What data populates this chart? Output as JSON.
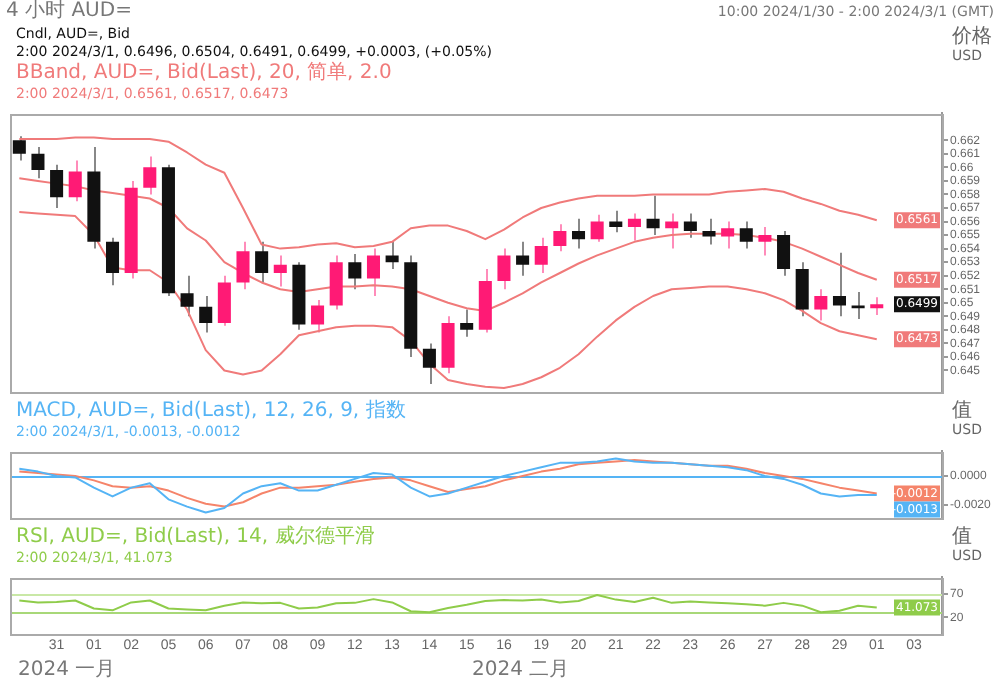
{
  "chart_data": [
    {
      "type": "candlestick",
      "title": "4 小时 AUD=",
      "subtitle": "10:00 2024/1/30 - 2:00 2024/3/1 (GMT)",
      "ylabel": "价格 USD",
      "categories": [
        null,
        null,
        "31",
        null,
        "01",
        null,
        "02",
        null,
        "05",
        null,
        "06",
        null,
        "07",
        null,
        "08",
        null,
        "09",
        null,
        "12",
        null,
        "13",
        null,
        "14",
        null,
        "15",
        null,
        "16",
        null,
        "19",
        null,
        "20",
        null,
        "21",
        null,
        "22",
        null,
        "23",
        null,
        "26",
        null,
        "27",
        null,
        "28",
        null,
        "29",
        null,
        "01",
        null,
        "03",
        null
      ],
      "ohlc": [
        [
          0.662,
          0.6623,
          0.6605,
          0.661
        ],
        [
          0.661,
          0.6615,
          0.6592,
          0.6598
        ],
        [
          0.6598,
          0.6602,
          0.657,
          0.6578
        ],
        [
          0.6578,
          0.6605,
          0.6575,
          0.6597
        ],
        [
          0.6597,
          0.6615,
          0.654,
          0.6545
        ],
        [
          0.6545,
          0.6548,
          0.6513,
          0.6522
        ],
        [
          0.6522,
          0.659,
          0.6518,
          0.6585
        ],
        [
          0.6585,
          0.6608,
          0.658,
          0.66
        ],
        [
          0.66,
          0.6602,
          0.6505,
          0.6507
        ],
        [
          0.6507,
          0.652,
          0.649,
          0.6497
        ],
        [
          0.6497,
          0.6505,
          0.6478,
          0.6485
        ],
        [
          0.6485,
          0.652,
          0.6483,
          0.6515
        ],
        [
          0.6515,
          0.6545,
          0.651,
          0.6538
        ],
        [
          0.6538,
          0.6545,
          0.6515,
          0.6522
        ],
        [
          0.6522,
          0.6535,
          0.6512,
          0.6528
        ],
        [
          0.6528,
          0.653,
          0.648,
          0.6484
        ],
        [
          0.6484,
          0.6502,
          0.6478,
          0.6498
        ],
        [
          0.6498,
          0.6535,
          0.6495,
          0.653
        ],
        [
          0.653,
          0.6536,
          0.651,
          0.6518
        ],
        [
          0.6518,
          0.654,
          0.6505,
          0.6535
        ],
        [
          0.6535,
          0.6545,
          0.6525,
          0.653
        ],
        [
          0.653,
          0.6535,
          0.646,
          0.6466
        ],
        [
          0.6466,
          0.647,
          0.644,
          0.6452
        ],
        [
          0.6452,
          0.649,
          0.6448,
          0.6485
        ],
        [
          0.6485,
          0.6495,
          0.6475,
          0.648
        ],
        [
          0.648,
          0.6525,
          0.6478,
          0.6516
        ],
        [
          0.6516,
          0.654,
          0.651,
          0.6535
        ],
        [
          0.6535,
          0.6545,
          0.652,
          0.6528
        ],
        [
          0.6528,
          0.6548,
          0.6522,
          0.6542
        ],
        [
          0.6542,
          0.6558,
          0.6538,
          0.6553
        ],
        [
          0.6553,
          0.6562,
          0.654,
          0.6547
        ],
        [
          0.6547,
          0.6565,
          0.6545,
          0.656
        ],
        [
          0.656,
          0.6568,
          0.6552,
          0.6556
        ],
        [
          0.6556,
          0.6566,
          0.6546,
          0.6562
        ],
        [
          0.6562,
          0.6579,
          0.655,
          0.6555
        ],
        [
          0.6555,
          0.6566,
          0.654,
          0.656
        ],
        [
          0.656,
          0.6566,
          0.6548,
          0.6553
        ],
        [
          0.6553,
          0.6562,
          0.6543,
          0.6549
        ],
        [
          0.6549,
          0.656,
          0.654,
          0.6555
        ],
        [
          0.6555,
          0.656,
          0.654,
          0.6545
        ],
        [
          0.6545,
          0.6556,
          0.6535,
          0.655
        ],
        [
          0.655,
          0.6553,
          0.652,
          0.6525
        ],
        [
          0.6525,
          0.653,
          0.649,
          0.6495
        ],
        [
          0.6495,
          0.651,
          0.6487,
          0.6505
        ],
        [
          0.6505,
          0.6537,
          0.649,
          0.6498
        ],
        [
          0.6498,
          0.6508,
          0.6488,
          0.6496
        ],
        [
          0.6496,
          0.6504,
          0.6491,
          0.6499
        ],
        null,
        null,
        null
      ],
      "colors": [
        "#111111",
        "#111111",
        "#111111",
        "#ff1a75",
        "#111111",
        "#111111",
        "#ff1a75",
        "#ff1a75",
        "#111111",
        "#111111",
        "#111111",
        "#ff1a75",
        "#ff1a75",
        "#111111",
        "#ff1a75",
        "#111111",
        "#ff1a75",
        "#ff1a75",
        "#111111",
        "#ff1a75",
        "#111111",
        "#111111",
        "#111111",
        "#ff1a75",
        "#111111",
        "#ff1a75",
        "#ff1a75",
        "#111111",
        "#ff1a75",
        "#ff1a75",
        "#111111",
        "#ff1a75",
        "#111111",
        "#ff1a75",
        "#111111",
        "#ff1a75",
        "#111111",
        "#111111",
        "#ff1a75",
        "#111111",
        "#ff1a75",
        "#111111",
        "#111111",
        "#ff1a75",
        "#111111",
        "#111111",
        "#ff1a75",
        null,
        null,
        null
      ],
      "series": [
        {
          "type": "line",
          "color": "#f07a7a",
          "values": [
            0.6621,
            0.6621,
            0.6621,
            0.6622,
            0.6622,
            0.6621,
            0.6621,
            0.6621,
            0.6619,
            0.6611,
            0.6602,
            0.6596,
            0.657,
            0.6543,
            0.654,
            0.6541,
            0.6543,
            0.6544,
            0.6541,
            0.6542,
            0.6545,
            0.6555,
            0.6557,
            0.6557,
            0.6553,
            0.6547,
            0.6554,
            0.6563,
            0.657,
            0.6574,
            0.6577,
            0.6579,
            0.6579,
            0.6579,
            0.658,
            0.658,
            0.658,
            0.658,
            0.6582,
            0.6583,
            0.6584,
            0.6582,
            0.6577,
            0.6573,
            0.6568,
            0.6565,
            0.6561,
            null,
            null,
            null
          ],
          "value_labels": [
            null,
            null,
            null,
            null,
            null,
            null,
            null,
            null,
            null,
            null,
            null,
            null,
            null,
            null,
            null,
            null,
            null,
            null,
            null,
            null,
            null,
            null,
            null,
            null,
            null,
            null,
            null,
            null,
            null,
            null,
            null,
            null,
            null,
            null,
            null,
            null,
            null,
            null,
            null,
            null,
            null,
            null,
            null,
            null,
            null,
            null,
            "0.6561",
            null,
            null,
            null
          ]
        },
        {
          "type": "line",
          "color": "#f07a7a",
          "values": [
            0.6592,
            0.659,
            0.6588,
            0.6586,
            0.6583,
            0.6581,
            0.6579,
            0.6577,
            0.657,
            0.6555,
            0.6546,
            0.653,
            0.6522,
            0.6515,
            0.651,
            0.6508,
            0.651,
            0.6512,
            0.6512,
            0.6513,
            0.6512,
            0.651,
            0.6505,
            0.65,
            0.6496,
            0.6494,
            0.65,
            0.6507,
            0.6515,
            0.6522,
            0.6529,
            0.6535,
            0.654,
            0.6545,
            0.6548,
            0.655,
            0.6551,
            0.6551,
            0.6551,
            0.655,
            0.6548,
            0.6545,
            0.654,
            0.6534,
            0.6528,
            0.6522,
            0.6517,
            null,
            null,
            null
          ],
          "value_labels": [
            null,
            null,
            null,
            null,
            null,
            null,
            null,
            null,
            null,
            null,
            null,
            null,
            null,
            null,
            null,
            null,
            null,
            null,
            null,
            null,
            null,
            null,
            null,
            null,
            null,
            null,
            null,
            null,
            null,
            null,
            null,
            null,
            null,
            null,
            null,
            null,
            null,
            null,
            null,
            null,
            null,
            null,
            null,
            null,
            null,
            null,
            "0.6517",
            null,
            null,
            null
          ]
        },
        {
          "type": "line",
          "color": "#f07a7a",
          "values": [
            0.6567,
            0.6566,
            0.6565,
            0.6564,
            0.655,
            0.6526,
            0.6524,
            0.6524,
            0.6515,
            0.6495,
            0.6465,
            0.645,
            0.6447,
            0.645,
            0.6462,
            0.6476,
            0.6479,
            0.6482,
            0.6483,
            0.6483,
            0.6482,
            0.6472,
            0.6455,
            0.6443,
            0.644,
            0.6438,
            0.6437,
            0.644,
            0.6445,
            0.6452,
            0.6462,
            0.6475,
            0.6487,
            0.6497,
            0.6505,
            0.651,
            0.6511,
            0.6512,
            0.6512,
            0.651,
            0.6507,
            0.6502,
            0.6494,
            0.6485,
            0.6479,
            0.6476,
            0.6473,
            null,
            null,
            null
          ],
          "value_labels": [
            null,
            null,
            null,
            null,
            null,
            null,
            null,
            null,
            null,
            null,
            null,
            null,
            null,
            null,
            null,
            null,
            null,
            null,
            null,
            null,
            null,
            null,
            null,
            null,
            null,
            null,
            null,
            null,
            null,
            null,
            null,
            null,
            null,
            null,
            null,
            null,
            null,
            null,
            null,
            null,
            null,
            null,
            null,
            null,
            null,
            null,
            "0.6473",
            null,
            null,
            null
          ]
        }
      ],
      "ylim": [
        0.6435,
        0.664
      ],
      "yticks": [
        0.645,
        0.646,
        0.647,
        0.648,
        0.649,
        0.65,
        0.651,
        0.652,
        0.653,
        0.654,
        0.655,
        0.656,
        0.657,
        0.658,
        0.659,
        0.66,
        0.661,
        0.662
      ],
      "tick_labels": "y",
      "annotations": [
        "Cndl, AUD=, Bid",
        "2:00 2024/3/1, 0.6496, 0.6504, 0.6491, 0.6499, +0.0003, (+0.05%)",
        "BBand, AUD=, Bid(Last), 20, 简单, 2.0",
        "2:00 2024/3/1, 0.6561, 0.6517, 0.6473"
      ],
      "value_labels": [
        null,
        null,
        null,
        null,
        null,
        null,
        null,
        null,
        null,
        null,
        null,
        null,
        null,
        null,
        null,
        null,
        null,
        null,
        null,
        null,
        null,
        null,
        null,
        null,
        null,
        null,
        null,
        null,
        null,
        null,
        null,
        null,
        null,
        null,
        null,
        null,
        null,
        null,
        null,
        null,
        null,
        null,
        null,
        null,
        null,
        null,
        "0.6499",
        null,
        null,
        null
      ]
    },
    {
      "type": "line",
      "ylabel": "值 USD",
      "categories": [
        null,
        null,
        "31",
        null,
        "01",
        null,
        "02",
        null,
        "05",
        null,
        "06",
        null,
        "07",
        null,
        "08",
        null,
        "09",
        null,
        "12",
        null,
        "13",
        null,
        "14",
        null,
        "15",
        null,
        "16",
        null,
        "19",
        null,
        "20",
        null,
        "21",
        null,
        "22",
        null,
        "23",
        null,
        "26",
        null,
        "27",
        null,
        "28",
        null,
        "29",
        null,
        "01",
        null,
        "03",
        null
      ],
      "series": [
        {
          "color": "#55b4f5",
          "values": [
            0.0005,
            0.0003,
            0,
            -0.0001,
            -0.0008,
            -0.0014,
            -0.0008,
            -0.0005,
            -0.0016,
            -0.0021,
            -0.0025,
            -0.0022,
            -0.0012,
            -0.0007,
            -0.0005,
            -0.001,
            -0.001,
            -0.0006,
            -0.0002,
            0.0002,
            0.0001,
            -0.0008,
            -0.0014,
            -0.0012,
            -0.0008,
            -0.0004,
            0,
            0.0003,
            0.0006,
            0.0009,
            0.0009,
            0.001,
            0.0012,
            0.001,
            0.0009,
            0.0009,
            0.0008,
            0.0007,
            0.0006,
            0.0004,
            0,
            -0.0002,
            -0.0006,
            -0.0012,
            -0.0014,
            -0.0013,
            -0.0013,
            null,
            null,
            null
          ],
          "value_labels": [
            null,
            null,
            null,
            null,
            null,
            null,
            null,
            null,
            null,
            null,
            null,
            null,
            null,
            null,
            null,
            null,
            null,
            null,
            null,
            null,
            null,
            null,
            null,
            null,
            null,
            null,
            null,
            null,
            null,
            null,
            null,
            null,
            null,
            null,
            null,
            null,
            null,
            null,
            null,
            null,
            null,
            null,
            null,
            null,
            null,
            null,
            "-0.0013",
            null,
            null,
            null
          ]
        },
        {
          "color": "#f5846a",
          "values": [
            0.0003,
            0.0002,
            0.0001,
            0,
            -0.0003,
            -0.0007,
            -0.0008,
            -0.0007,
            -0.001,
            -0.0015,
            -0.0019,
            -0.0021,
            -0.0018,
            -0.0012,
            -0.0008,
            -0.0008,
            -0.0007,
            -0.0006,
            -0.0004,
            -0.0002,
            -0.0001,
            -0.0003,
            -0.0007,
            -0.0011,
            -0.0009,
            -0.0007,
            -0.0003,
            0,
            0.0003,
            0.0005,
            0.0008,
            0.0009,
            0.001,
            0.0011,
            0.001,
            0.0009,
            0.0008,
            0.0007,
            0.0007,
            0.0005,
            0.0002,
            0,
            -0.0002,
            -0.0005,
            -0.0008,
            -0.001,
            -0.0012,
            null,
            null,
            null
          ],
          "value_labels": [
            null,
            null,
            null,
            null,
            null,
            null,
            null,
            null,
            null,
            null,
            null,
            null,
            null,
            null,
            null,
            null,
            null,
            null,
            null,
            null,
            null,
            null,
            null,
            null,
            null,
            null,
            null,
            null,
            null,
            null,
            null,
            null,
            null,
            null,
            null,
            null,
            null,
            null,
            null,
            null,
            null,
            null,
            null,
            null,
            null,
            null,
            "-0.0012",
            null,
            null,
            null
          ]
        }
      ],
      "ylim": [
        -0.0028,
        0.0017
      ],
      "yticks": [
        {
          "value": 0,
          "label": "0.0000"
        },
        {
          "value": -0.002,
          "label": "-0.0020"
        }
      ],
      "ref_lines": [
        {
          "axis": "y",
          "value": 0,
          "color": "#55b4f5"
        }
      ],
      "tick_labels": "y",
      "annotations": [
        "MACD, AUD=, Bid(Last), 12, 26, 9, 指数",
        "2:00 2024/3/1, -0.0013, -0.0012"
      ]
    },
    {
      "type": "line",
      "ylabel": "值 USD",
      "categories": [
        null,
        null,
        "31",
        null,
        "01",
        null,
        "02",
        null,
        "05",
        null,
        "06",
        null,
        "07",
        null,
        "08",
        null,
        "09",
        null,
        "12",
        null,
        "13",
        null,
        "14",
        null,
        "15",
        null,
        "16",
        null,
        "19",
        null,
        "20",
        null,
        "21",
        null,
        "22",
        null,
        "23",
        null,
        "26",
        null,
        "27",
        null,
        "28",
        null,
        "29",
        null,
        "01",
        null,
        "03",
        null
      ],
      "series": [
        {
          "color": "#8fcc4a",
          "values": [
            56,
            52,
            53,
            56,
            39,
            35,
            52,
            56,
            39,
            37,
            35,
            45,
            52,
            50,
            51,
            39,
            41,
            50,
            51,
            59,
            52,
            33,
            31,
            40,
            47,
            55,
            57,
            56,
            58,
            52,
            55,
            68,
            58,
            53,
            62,
            51,
            54,
            52,
            50,
            48,
            45,
            51,
            45,
            31,
            34,
            45,
            41.073,
            null,
            null,
            null
          ],
          "value_labels": [
            null,
            null,
            null,
            null,
            null,
            null,
            null,
            null,
            null,
            null,
            null,
            null,
            null,
            null,
            null,
            null,
            null,
            null,
            null,
            null,
            null,
            null,
            null,
            null,
            null,
            null,
            null,
            null,
            null,
            null,
            null,
            null,
            null,
            null,
            null,
            null,
            null,
            null,
            null,
            null,
            null,
            null,
            null,
            null,
            null,
            null,
            "41.073",
            null,
            null,
            null
          ]
        }
      ],
      "ylim": [
        -14,
        106
      ],
      "yticks": [
        70,
        20
      ],
      "ref_lines": [
        {
          "axis": "y",
          "value": 70,
          "color": "#c9e8a6"
        },
        {
          "axis": "y",
          "value": 30,
          "color": "#a8d878"
        }
      ],
      "annotations": [
        "RSI, AUD=, Bid(Last), 14, 威尔德平滑",
        "2:00 2024/3/1, 41.073",
        "2024 一月",
        "2024 二月"
      ]
    }
  ]
}
